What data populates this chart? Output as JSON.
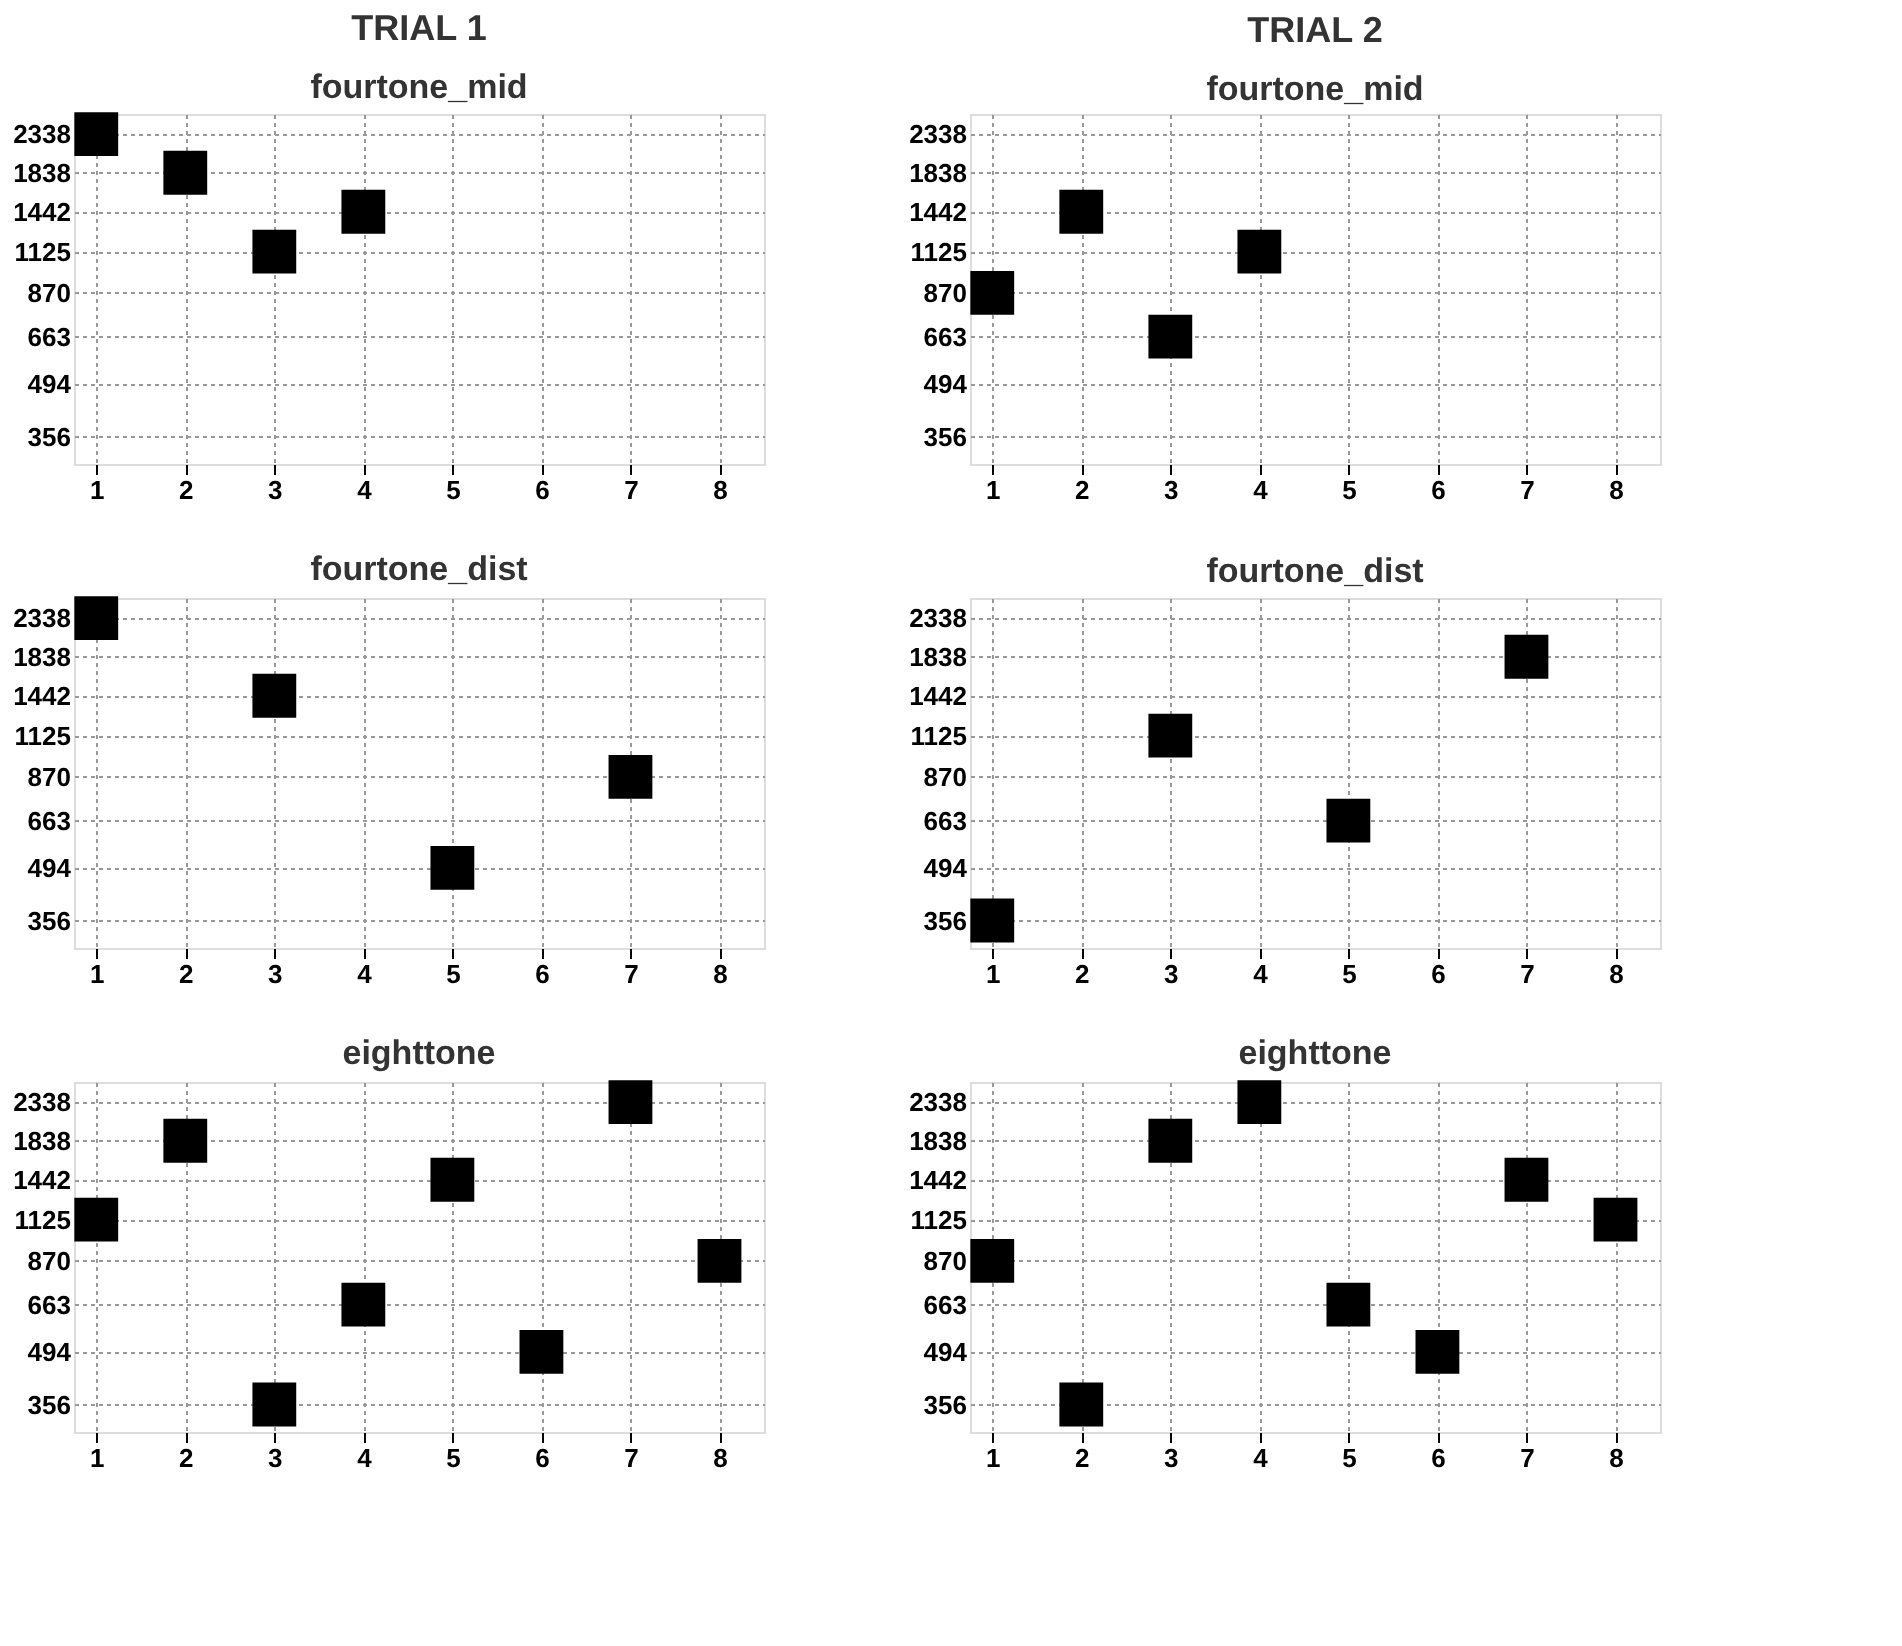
{
  "chart_data": [
    {
      "type": "scatter",
      "annotations": [
        "TRIAL 1"
      ],
      "title": "fourtone_mid",
      "x": [
        1,
        2,
        3,
        4
      ],
      "values": [
        2338,
        1838,
        1125,
        1442
      ],
      "color": "#000000",
      "marker": "square",
      "grid": true,
      "log": "y",
      "xlim": [
        0.75,
        8.5
      ],
      "xticks": [
        1,
        2,
        3,
        4,
        5,
        6,
        7,
        8
      ],
      "ylim": [
        300,
        2650
      ],
      "yticks": [
        356,
        494,
        663,
        870,
        1125,
        1442,
        1838,
        2338
      ]
    },
    {
      "type": "scatter",
      "annotations": [
        "TRIAL 2"
      ],
      "title": "fourtone_mid",
      "x": [
        1,
        2,
        3,
        4
      ],
      "values": [
        870,
        1442,
        663,
        1125
      ],
      "color": "#000000",
      "marker": "square",
      "grid": true,
      "log": "y",
      "xlim": [
        0.75,
        8.5
      ],
      "xticks": [
        1,
        2,
        3,
        4,
        5,
        6,
        7,
        8
      ],
      "ylim": [
        300,
        2650
      ],
      "yticks": [
        356,
        494,
        663,
        870,
        1125,
        1442,
        1838,
        2338
      ]
    },
    {
      "type": "scatter",
      "title": "fourtone_dist",
      "x": [
        1,
        3,
        5,
        7
      ],
      "values": [
        2338,
        1442,
        494,
        870
      ],
      "color": "#000000",
      "marker": "square",
      "grid": true,
      "log": "y",
      "xlim": [
        0.75,
        8.5
      ],
      "xticks": [
        1,
        2,
        3,
        4,
        5,
        6,
        7,
        8
      ],
      "ylim": [
        300,
        2650
      ],
      "yticks": [
        356,
        494,
        663,
        870,
        1125,
        1442,
        1838,
        2338
      ]
    },
    {
      "type": "scatter",
      "title": "fourtone_dist",
      "x": [
        1,
        3,
        5,
        7
      ],
      "values": [
        356,
        1125,
        663,
        1838
      ],
      "color": "#000000",
      "marker": "square",
      "grid": true,
      "log": "y",
      "xlim": [
        0.75,
        8.5
      ],
      "xticks": [
        1,
        2,
        3,
        4,
        5,
        6,
        7,
        8
      ],
      "ylim": [
        300,
        2650
      ],
      "yticks": [
        356,
        494,
        663,
        870,
        1125,
        1442,
        1838,
        2338
      ]
    },
    {
      "type": "scatter",
      "title": "eighttone",
      "x": [
        1,
        2,
        3,
        4,
        5,
        6,
        7,
        8
      ],
      "values": [
        1125,
        1838,
        356,
        663,
        1442,
        494,
        2338,
        870
      ],
      "color": "#000000",
      "marker": "square",
      "grid": true,
      "log": "y",
      "xlim": [
        0.75,
        8.5
      ],
      "xticks": [
        1,
        2,
        3,
        4,
        5,
        6,
        7,
        8
      ],
      "ylim": [
        300,
        2650
      ],
      "yticks": [
        356,
        494,
        663,
        870,
        1125,
        1442,
        1838,
        2338
      ]
    },
    {
      "type": "scatter",
      "title": "eighttone",
      "x": [
        1,
        2,
        3,
        4,
        5,
        6,
        7,
        8
      ],
      "values": [
        870,
        356,
        1838,
        2338,
        663,
        494,
        1442,
        1125
      ],
      "color": "#000000",
      "marker": "square",
      "grid": true,
      "log": "y",
      "xlim": [
        0.75,
        8.5
      ],
      "xticks": [
        1,
        2,
        3,
        4,
        5,
        6,
        7,
        8
      ],
      "ylim": [
        300,
        2650
      ],
      "yticks": [
        356,
        494,
        663,
        870,
        1125,
        1442,
        1838,
        2338
      ]
    }
  ]
}
